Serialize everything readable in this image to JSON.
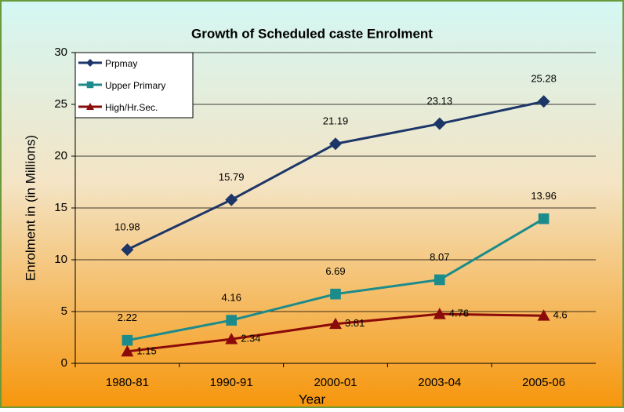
{
  "chart_data": {
    "type": "line",
    "title": "Growth of Scheduled caste Enrolment",
    "x_label": "Year",
    "y_label": "Enrolment in (in Millions)",
    "categories": [
      "1980-81",
      "1990-91",
      "2000-01",
      "2003-04",
      "2005-06"
    ],
    "series": [
      {
        "name": "Prpmay",
        "color": "#1c3668",
        "marker": "diamond",
        "label_position": "above",
        "values": [
          10.98,
          15.79,
          21.19,
          23.13,
          25.28
        ]
      },
      {
        "name": "Upper Primary",
        "color": "#1b8b8b",
        "marker": "square",
        "label_position": "above",
        "values": [
          2.22,
          4.16,
          6.69,
          8.07,
          13.96
        ]
      },
      {
        "name": "High/Hr.Sec.",
        "color": "#8b0a0a",
        "marker": "triangle",
        "label_position": "right",
        "values": [
          1.15,
          2.34,
          3.81,
          4.76,
          4.6
        ]
      }
    ],
    "ylim": [
      0,
      30
    ],
    "yticks": [
      0,
      5,
      10,
      15,
      20,
      25,
      30
    ],
    "grid": true,
    "legend": "top-left"
  }
}
